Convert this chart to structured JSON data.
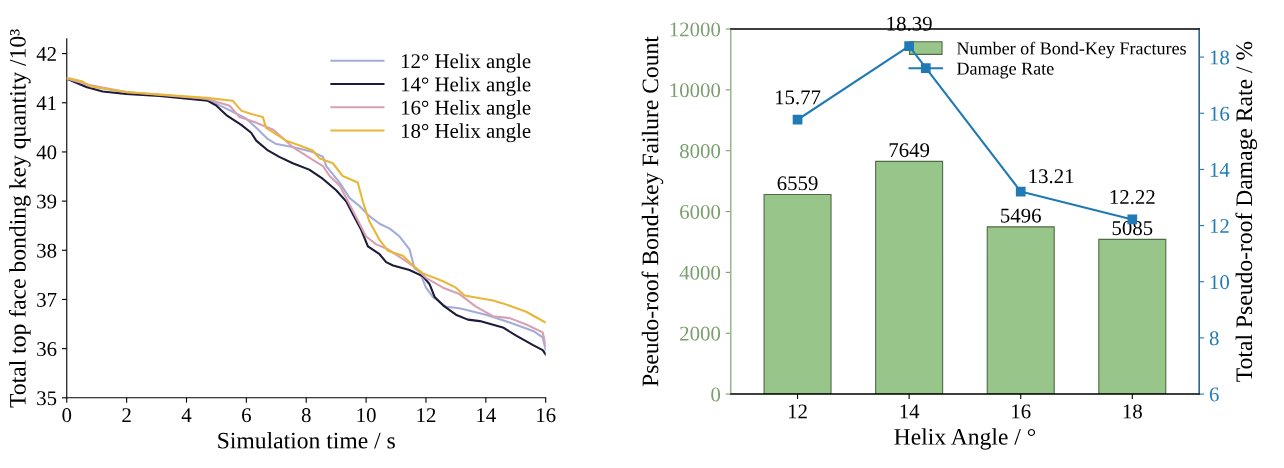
{
  "chart_data": [
    {
      "type": "line",
      "xlabel": "Simulation time / s",
      "ylabel": "Total top face bonding key quantity /10³",
      "xlim": [
        0,
        16
      ],
      "xticks": [
        0,
        2,
        4,
        6,
        8,
        10,
        12,
        14,
        16
      ],
      "ylim": [
        35,
        42.3
      ],
      "yticks": [
        35,
        36,
        37,
        38,
        39,
        40,
        41,
        42
      ],
      "legend": "top right",
      "grid": false,
      "series": [
        {
          "name": "12° Helix angle",
          "color": "#a3acd8",
          "x": [
            0,
            0.87,
            1.98,
            4.66,
            5.33,
            5.99,
            6.33,
            6.72,
            7.0,
            7.55,
            8.22,
            8.56,
            8.67,
            9.11,
            9.45,
            9.78,
            10.1,
            10.45,
            10.79,
            11.12,
            11.45,
            11.62,
            11.79,
            12.0,
            12.23,
            12.68,
            13.12,
            14.0,
            14.8,
            15.58,
            15.9,
            16
          ],
          "values": [
            41.49,
            41.33,
            41.21,
            41.08,
            40.88,
            40.68,
            40.49,
            40.26,
            40.16,
            40.1,
            40.0,
            39.9,
            39.71,
            39.38,
            39.06,
            38.9,
            38.7,
            38.54,
            38.44,
            38.28,
            38.02,
            37.63,
            37.56,
            37.24,
            37.05,
            36.85,
            36.82,
            36.69,
            36.53,
            36.36,
            36.23,
            35.97
          ]
        },
        {
          "name": "14° Helix angle",
          "color": "#1c1c3a",
          "x": [
            0,
            0.65,
            1.2,
            1.98,
            3.1,
            4.71,
            5.0,
            5.33,
            5.83,
            6.16,
            6.33,
            6.72,
            7.1,
            7.55,
            8.1,
            8.56,
            9.0,
            9.34,
            9.56,
            9.84,
            10.06,
            10.45,
            10.67,
            10.9,
            11.45,
            11.9,
            12.12,
            12.29,
            12.57,
            13.0,
            13.4,
            13.8,
            14.57,
            15.0,
            15.58,
            15.9,
            16
          ],
          "values": [
            41.49,
            41.32,
            41.23,
            41.18,
            41.14,
            41.04,
            40.94,
            40.75,
            40.55,
            40.39,
            40.23,
            40.03,
            39.9,
            39.77,
            39.64,
            39.45,
            39.22,
            38.99,
            38.73,
            38.41,
            38.08,
            37.92,
            37.76,
            37.69,
            37.6,
            37.47,
            37.31,
            37.05,
            36.88,
            36.69,
            36.59,
            36.56,
            36.43,
            36.27,
            36.07,
            35.97,
            35.88
          ]
        },
        {
          "name": "16° Helix angle",
          "color": "#d99fb5",
          "x": [
            0,
            0.76,
            1.98,
            4.66,
            5.44,
            5.77,
            6.22,
            6.9,
            7.55,
            8.22,
            8.56,
            8.78,
            9.11,
            9.34,
            9.67,
            10.0,
            10.34,
            10.73,
            11.23,
            11.68,
            12.0,
            12.57,
            13.12,
            13.68,
            14.24,
            14.8,
            15.35,
            15.9,
            16
          ],
          "values": [
            41.49,
            41.36,
            41.22,
            41.08,
            40.94,
            40.71,
            40.62,
            40.45,
            40.1,
            39.84,
            39.71,
            39.51,
            39.32,
            39.06,
            38.67,
            38.28,
            38.12,
            38.02,
            37.82,
            37.63,
            37.44,
            37.24,
            37.11,
            36.85,
            36.66,
            36.62,
            36.49,
            36.33,
            36.07
          ]
        },
        {
          "name": "18° Helix angle",
          "color": "#e8b73a",
          "x": [
            0,
            0.53,
            0.81,
            1.98,
            4.66,
            5.55,
            5.83,
            6.11,
            6.55,
            6.66,
            7.33,
            7.78,
            8.22,
            8.44,
            8.89,
            9.22,
            9.72,
            9.89,
            10.1,
            10.45,
            10.73,
            11.23,
            11.56,
            11.9,
            12.57,
            13.0,
            13.29,
            14.24,
            14.57,
            15.35,
            16
          ],
          "values": [
            41.51,
            41.43,
            41.33,
            41.22,
            41.1,
            41.04,
            40.84,
            40.78,
            40.71,
            40.49,
            40.23,
            40.13,
            40.03,
            39.87,
            39.77,
            39.51,
            39.38,
            38.99,
            38.6,
            38.21,
            37.99,
            37.89,
            37.69,
            37.53,
            37.37,
            37.24,
            37.08,
            36.98,
            36.92,
            36.75,
            36.53
          ]
        }
      ]
    },
    {
      "type": "bar",
      "xlabel": "Helix Angle / °",
      "ylabel": "Pseudo-roof Bond-key Failure Count",
      "y2label": "Total Pseudo-roof Damage Rate / %",
      "categories": [
        "12",
        "14",
        "16",
        "18"
      ],
      "ylim": [
        0,
        12000
      ],
      "yticks": [
        0,
        2000,
        4000,
        6000,
        8000,
        10000,
        12000
      ],
      "y2lim": [
        6,
        19
      ],
      "y2ticks": [
        6,
        8,
        10,
        12,
        14,
        16,
        18
      ],
      "legend": "top right",
      "grid": false,
      "data_labels": true,
      "series": [
        {
          "name": "Number of Bond-Key Fractures",
          "type": "bar",
          "color": "#98c68a",
          "values": [
            6559,
            7649,
            5496,
            5085
          ]
        },
        {
          "name": "Damage Rate",
          "type": "line",
          "axis": "y2",
          "marker": "square",
          "color": "#1f7ab5",
          "values": [
            15.77,
            18.39,
            13.21,
            12.22
          ]
        }
      ]
    }
  ]
}
